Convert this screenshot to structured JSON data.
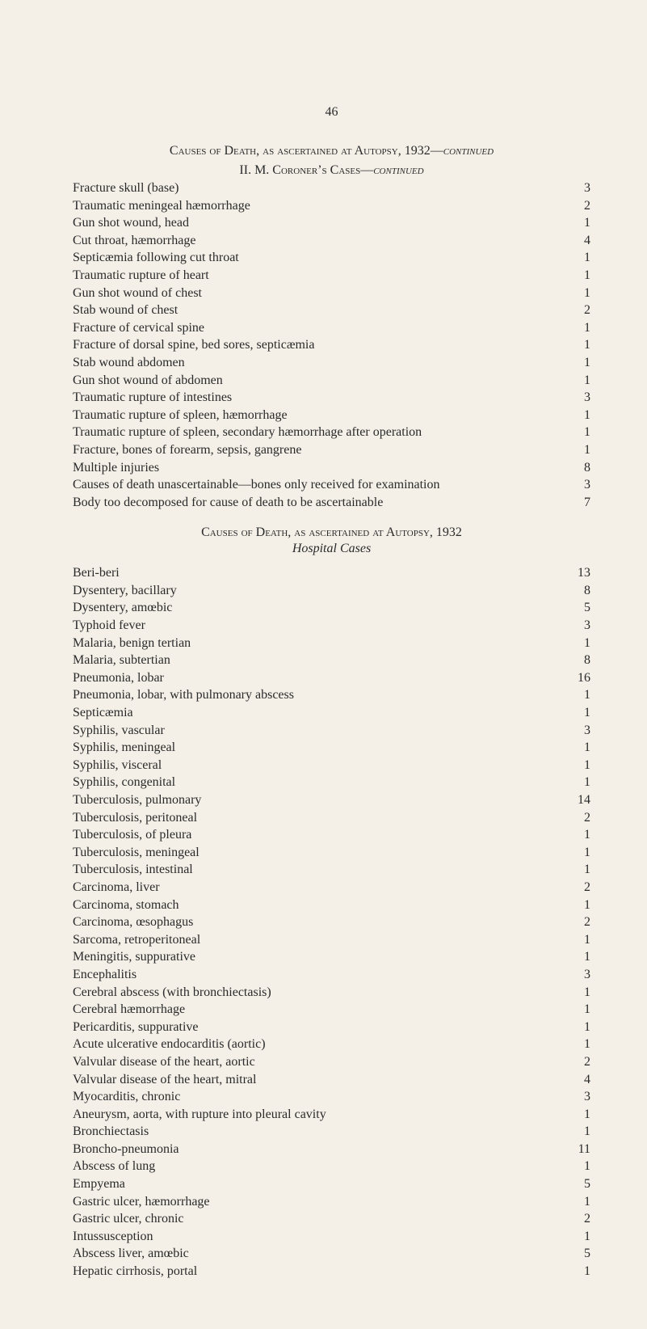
{
  "page_number": "46",
  "section_a": {
    "title_html": "Causes of Death, as ascertained at Autopsy, 1932—<i>continued</i>",
    "subtitle_html": "II. M. Coroner’s Cases—<i>continued</i>",
    "rows": [
      {
        "label": "Fracture skull (base)",
        "val": "3"
      },
      {
        "label": "Traumatic meningeal hæmorrhage",
        "val": "2"
      },
      {
        "label": "Gun shot wound, head",
        "val": "1"
      },
      {
        "label": "Cut throat, hæmorrhage",
        "val": "4"
      },
      {
        "label": "Septicæmia following cut throat",
        "val": "1"
      },
      {
        "label": "Traumatic rupture of heart",
        "val": "1"
      },
      {
        "label": "Gun shot wound of chest",
        "val": "1"
      },
      {
        "label": "Stab wound of chest",
        "val": "2"
      },
      {
        "label": "Fracture of cervical spine",
        "val": "1"
      },
      {
        "label": "Fracture of dorsal spine, bed sores, septicæmia",
        "val": "1"
      },
      {
        "label": "Stab wound abdomen",
        "val": "1"
      },
      {
        "label": "Gun shot wound of abdomen",
        "val": "1"
      },
      {
        "label": "Traumatic rupture of intestines",
        "val": "3"
      },
      {
        "label": "Traumatic rupture of spleen, hæmorrhage",
        "val": "1"
      },
      {
        "label": "Traumatic rupture of spleen, secondary hæmorrhage after operation",
        "val": "1",
        "hang": true
      },
      {
        "label": "Fracture, bones of forearm, sepsis, gangrene",
        "val": "1"
      },
      {
        "label": "Multiple injuries",
        "val": "8"
      },
      {
        "label": "Causes of death unascertainable—bones only received for examination",
        "val": "3",
        "hang": true
      },
      {
        "label": "Body too decomposed for cause of death to be ascertainable",
        "val": "7"
      }
    ]
  },
  "section_b": {
    "title": "Causes of Death, as ascertained at Autopsy, 1932",
    "subtitle": "Hospital Cases",
    "rows": [
      {
        "label": "Beri-beri",
        "val": "13"
      },
      {
        "label": "Dysentery, bacillary",
        "val": "8"
      },
      {
        "label": "Dysentery, amœbic",
        "val": "5"
      },
      {
        "label": "Typhoid fever",
        "val": "3"
      },
      {
        "label": "Malaria, benign tertian",
        "val": "1"
      },
      {
        "label": "Malaria, subtertian",
        "val": "8"
      },
      {
        "label": "Pneumonia, lobar",
        "val": "16"
      },
      {
        "label": "Pneumonia, lobar, with pulmonary abscess",
        "val": "1"
      },
      {
        "label": "Septicæmia",
        "val": "1"
      },
      {
        "label": "Syphilis, vascular",
        "val": "3"
      },
      {
        "label": "Syphilis, meningeal",
        "val": "1"
      },
      {
        "label": "Syphilis, visceral",
        "val": "1"
      },
      {
        "label": "Syphilis, congenital",
        "val": "1"
      },
      {
        "label": "Tuberculosis, pulmonary",
        "val": "14"
      },
      {
        "label": "Tuberculosis, peritoneal",
        "val": "2"
      },
      {
        "label": "Tuberculosis, of pleura",
        "val": "1"
      },
      {
        "label": "Tuberculosis, meningeal",
        "val": "1"
      },
      {
        "label": "Tuberculosis, intestinal",
        "val": "1"
      },
      {
        "label": "Carcinoma, liver",
        "val": "2"
      },
      {
        "label": "Carcinoma, stomach",
        "val": "1"
      },
      {
        "label": "Carcinoma, œsophagus",
        "val": "2"
      },
      {
        "label": "Sarcoma, retroperitoneal",
        "val": "1"
      },
      {
        "label": "Meningitis, suppurative",
        "val": "1"
      },
      {
        "label": "Encephalitis",
        "val": "3"
      },
      {
        "label": "Cerebral abscess (with bronchiectasis)",
        "val": "1"
      },
      {
        "label": "Cerebral hæmorrhage",
        "val": "1"
      },
      {
        "label": "Pericarditis, suppurative",
        "val": "1"
      },
      {
        "label": "Acute ulcerative endocarditis (aortic)",
        "val": "1"
      },
      {
        "label": "Valvular disease of the heart, aortic",
        "val": "2"
      },
      {
        "label": "Valvular disease of the heart, mitral",
        "val": "4"
      },
      {
        "label": "Myocarditis, chronic",
        "val": "3"
      },
      {
        "label": "Aneurysm, aorta, with rupture into pleural cavity",
        "val": "1"
      },
      {
        "label": "Bronchiectasis",
        "val": "1"
      },
      {
        "label": "Broncho-pneumonia",
        "val": "11"
      },
      {
        "label": "Abscess of lung",
        "val": "1"
      },
      {
        "label": "Empyema",
        "val": "5"
      },
      {
        "label": "Gastric ulcer, hæmorrhage",
        "val": "1"
      },
      {
        "label": "Gastric ulcer, chronic",
        "val": "2"
      },
      {
        "label": "Intussusception",
        "val": "1"
      },
      {
        "label": "Abscess liver, amœbic",
        "val": "5"
      },
      {
        "label": "Hepatic cirrhosis, portal",
        "val": "1"
      }
    ]
  }
}
